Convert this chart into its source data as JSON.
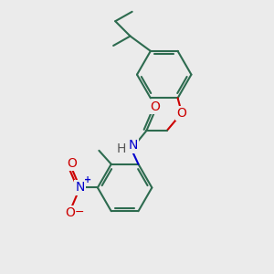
{
  "background_color": "#ebebeb",
  "bond_color": "#2d6b4f",
  "bond_width": 1.5,
  "atom_colors": {
    "O": "#cc0000",
    "N": "#0000cc",
    "H": "#555555",
    "C": "#2d6b4f",
    "plus": "#0000cc",
    "minus": "#cc0000"
  },
  "font_size_atom": 10,
  "font_size_charge": 7
}
